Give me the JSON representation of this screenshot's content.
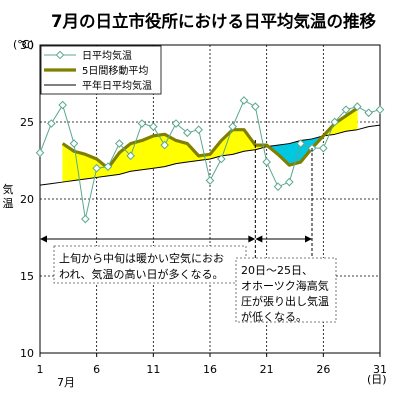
{
  "chart_data": {
    "type": "line",
    "title": "7月の日立市役所における日平均気温の推移",
    "unit_label": "(℃)",
    "ylabel": "気温",
    "xlabel": "(日)",
    "month_label": "7月",
    "x_ticks": [
      1,
      6,
      11,
      16,
      21,
      26,
      31
    ],
    "y_ticks": [
      10,
      15,
      20,
      25,
      30
    ],
    "xlim": [
      1,
      31
    ],
    "ylim": [
      10,
      30
    ],
    "grid": true,
    "legend_position": "top-left",
    "x": [
      1,
      2,
      3,
      4,
      5,
      6,
      7,
      8,
      9,
      10,
      11,
      12,
      13,
      14,
      15,
      16,
      17,
      18,
      19,
      20,
      21,
      22,
      23,
      24,
      25,
      26,
      27,
      28,
      29,
      30,
      31
    ],
    "series": [
      {
        "name": "日平均気温",
        "values": [
          23.0,
          24.9,
          26.1,
          23.6,
          18.7,
          22.0,
          22.1,
          23.6,
          22.8,
          24.9,
          24.7,
          23.5,
          24.9,
          24.3,
          24.5,
          21.2,
          22.6,
          24.7,
          26.4,
          26.0,
          22.4,
          20.8,
          21.1,
          23.6,
          23.3,
          23.3,
          25.0,
          25.8,
          26.0,
          25.6,
          25.8
        ],
        "color": "#5aa890",
        "marker": "diamond"
      },
      {
        "name": "5日間移動平均",
        "values": [
          null,
          null,
          23.6,
          23.1,
          22.9,
          22.6,
          22.0,
          23.0,
          23.6,
          23.8,
          24.1,
          24.2,
          23.8,
          23.6,
          22.8,
          22.9,
          23.8,
          24.5,
          24.5,
          23.5,
          23.5,
          22.9,
          22.2,
          22.4,
          23.3,
          24.1,
          24.9,
          25.4,
          25.9,
          null,
          null
        ],
        "color": "#808000"
      },
      {
        "name": "平年日平均気温",
        "values": [
          20.9,
          21.0,
          21.1,
          21.2,
          21.3,
          21.4,
          21.5,
          21.6,
          21.8,
          21.9,
          22.0,
          22.1,
          22.3,
          22.4,
          22.5,
          22.6,
          22.8,
          22.9,
          23.1,
          23.2,
          23.4,
          23.5,
          23.6,
          23.8,
          23.9,
          24.1,
          24.2,
          24.4,
          24.5,
          24.7,
          24.8
        ],
        "color": "#000000"
      }
    ],
    "fill_above_color": "#ffff00",
    "fill_below_color": "#00c8e0",
    "annotations": [
      {
        "text_lines": [
          "上旬から中旬は暖かい空気におお",
          "われ、気温の高い日が多くなる。"
        ],
        "span": [
          1,
          20
        ]
      },
      {
        "text_lines": [
          "20日～25日、",
          "オホーツク海高気",
          "圧が張り出し気温",
          "が低くなる。"
        ],
        "span": [
          20,
          25
        ]
      }
    ]
  }
}
